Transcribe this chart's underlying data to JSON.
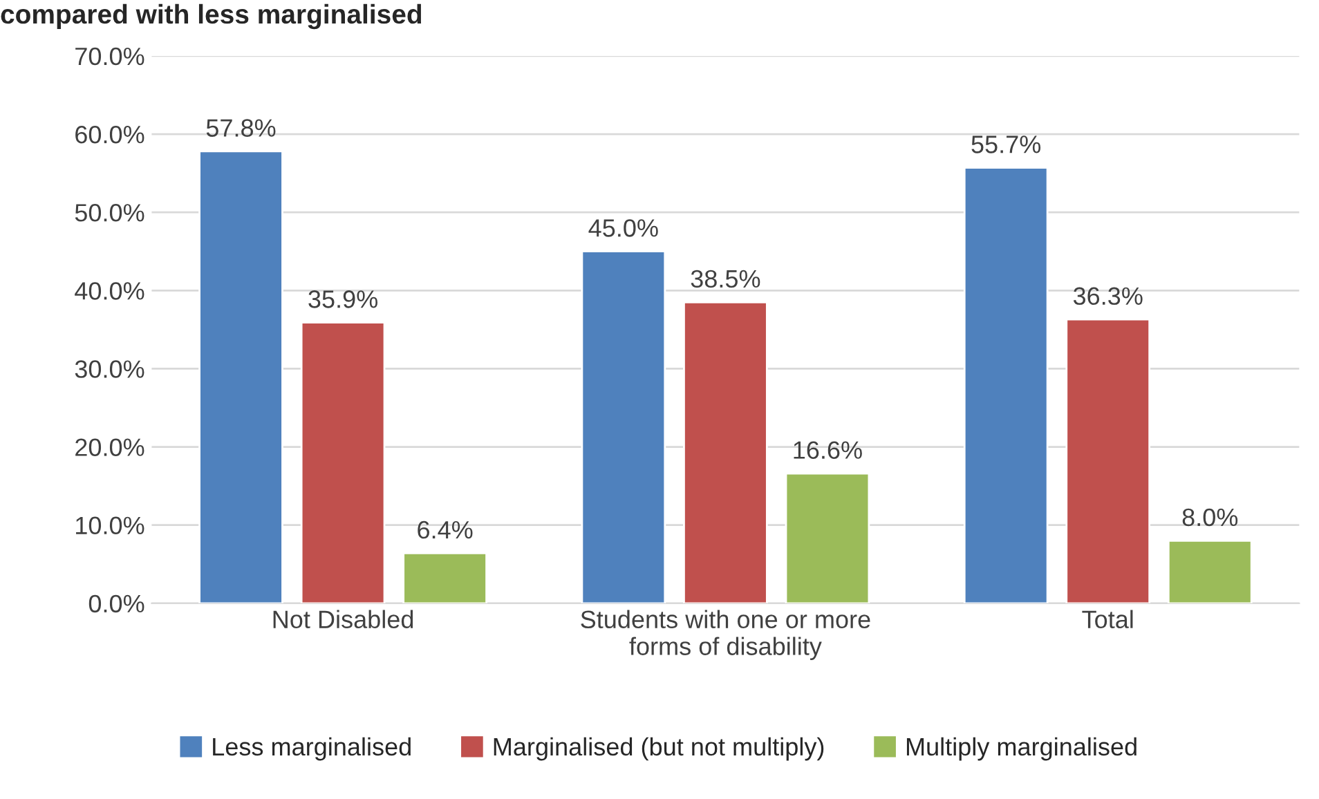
{
  "chart_data": {
    "type": "bar",
    "title": "compared with less marginalised",
    "categories": [
      "Not Disabled",
      "Students with one or more\nforms of disability",
      "Total"
    ],
    "series": [
      {
        "name": "Less marginalised",
        "color": "#4f81bd",
        "values": [
          57.8,
          45.0,
          55.7
        ],
        "value_labels": [
          "57.8%",
          "45.0%",
          "55.7%"
        ]
      },
      {
        "name": "Marginalised (but not multiply)",
        "color": "#c0504d",
        "values": [
          35.9,
          38.5,
          36.3
        ],
        "value_labels": [
          "35.9%",
          "38.5%",
          "36.3%"
        ]
      },
      {
        "name": "Multiply marginalised",
        "color": "#9bbb59",
        "values": [
          6.4,
          16.6,
          8.0
        ],
        "value_labels": [
          "6.4%",
          "16.6%",
          "8.0%"
        ]
      }
    ],
    "ylim": [
      0,
      70
    ],
    "yticks": [
      {
        "value": 0,
        "label": "0.0%"
      },
      {
        "value": 10,
        "label": "10.0%"
      },
      {
        "value": 20,
        "label": "20.0%"
      },
      {
        "value": 30,
        "label": "30.0%"
      },
      {
        "value": 40,
        "label": "40.0%"
      },
      {
        "value": 50,
        "label": "50.0%"
      },
      {
        "value": 60,
        "label": "60.0%"
      },
      {
        "value": 70,
        "label": "70.0%"
      }
    ],
    "grid": "y",
    "legend": "bottom"
  }
}
